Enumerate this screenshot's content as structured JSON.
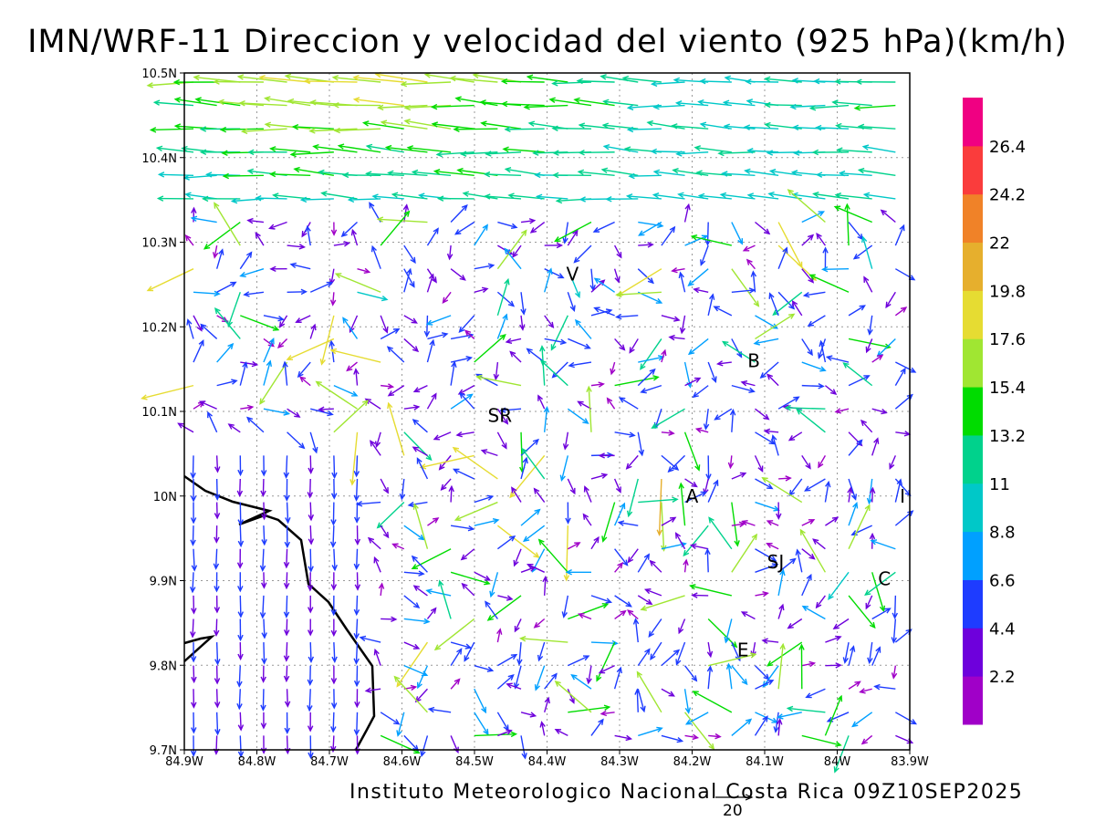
{
  "title": "IMN/WRF-11 Direccion y velocidad del viento (925 hPa)(km/h)",
  "footer": "Instituto Meteorologico Nacional Costa Rica 09Z10SEP2025",
  "reference_vector": {
    "value": "20"
  },
  "axes": {
    "lat_labels": [
      "10.5N",
      "10.4N",
      "10.3N",
      "10.2N",
      "10.1N",
      "10N",
      "9.9N",
      "9.8N",
      "9.7N"
    ],
    "lon_labels": [
      "84.9W",
      "84.8W",
      "84.7W",
      "84.6W",
      "84.5W",
      "84.4W",
      "84.3W",
      "84.2W",
      "84.1W",
      "84W",
      "83.9W"
    ],
    "lat_range": [
      9.7,
      10.5
    ],
    "lon_range": [
      -84.9,
      -83.9
    ]
  },
  "colorbar": {
    "levels": [
      "2.2",
      "4.4",
      "6.6",
      "8.8",
      "11",
      "13.2",
      "15.4",
      "17.6",
      "19.8",
      "22",
      "24.2",
      "26.4"
    ],
    "colors": [
      "#a000c8",
      "#6e00dc",
      "#1e3cff",
      "#00a0ff",
      "#00c8c8",
      "#00d28c",
      "#00dc00",
      "#a0e632",
      "#e6dc32",
      "#e6af2d",
      "#f08228",
      "#fa3c3c",
      "#f00082"
    ]
  },
  "cities": [
    {
      "label": "V",
      "lon": -84.365,
      "lat": 10.262
    },
    {
      "label": "B",
      "lon": -84.115,
      "lat": 10.16
    },
    {
      "label": "SR",
      "lon": -84.465,
      "lat": 10.095
    },
    {
      "label": "A",
      "lon": -84.2,
      "lat": 10.0
    },
    {
      "label": "I",
      "lon": -83.91,
      "lat": 10.0
    },
    {
      "label": "SJ",
      "lon": -84.085,
      "lat": 9.922
    },
    {
      "label": "C",
      "lon": -83.935,
      "lat": 9.902
    },
    {
      "label": "E",
      "lon": -84.13,
      "lat": 9.818
    }
  ]
}
